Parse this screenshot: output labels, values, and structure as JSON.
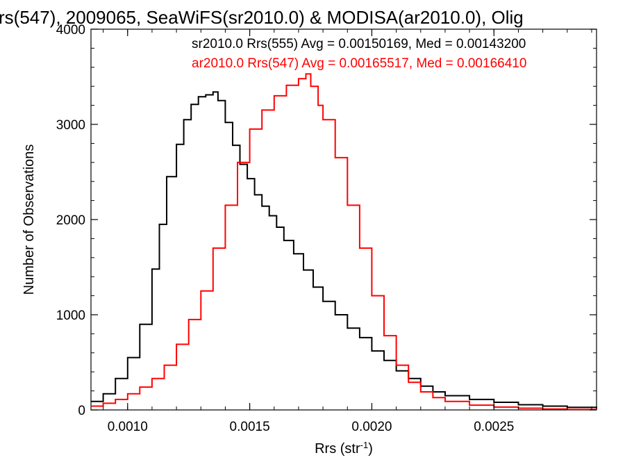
{
  "chart_data": {
    "type": "line",
    "title": "rs(547), 2009065, SeaWiFS(sr2010.0) & MODISA(ar2010.0), Olig",
    "xlabel": "Rrs (str",
    "xlabel_sup": "-1",
    "xlabel_close": ")",
    "ylabel": "Number of Observations",
    "xlim": [
      0.00085,
      0.00292
    ],
    "ylim": [
      0,
      4000
    ],
    "x_ticks": [
      0.001,
      0.0015,
      0.002,
      0.0025
    ],
    "x_tick_labels": [
      "0.0010",
      "0.0015",
      "0.0020",
      "0.0025"
    ],
    "y_ticks": [
      0,
      1000,
      2000,
      3000,
      4000
    ],
    "y_tick_labels": [
      "0",
      "1000",
      "2000",
      "3000",
      "4000"
    ],
    "legend_position": "top-right",
    "colors": {
      "sr2010": "#000000",
      "ar2010": "#ff0000"
    },
    "series": [
      {
        "label": "sr2010.0 Rrs(555) Avg = 0.00150169, Med = 0.00143200",
        "color": "#000000",
        "x": [
          0.00085,
          0.0009,
          0.00095,
          0.001,
          0.00105,
          0.0011,
          0.00113,
          0.00116,
          0.0012,
          0.00123,
          0.00126,
          0.00129,
          0.00132,
          0.00135,
          0.00137,
          0.0014,
          0.00143,
          0.00146,
          0.00149,
          0.00152,
          0.00155,
          0.00158,
          0.00161,
          0.00164,
          0.00168,
          0.00172,
          0.00176,
          0.0018,
          0.00185,
          0.0019,
          0.00195,
          0.002,
          0.00205,
          0.0021,
          0.00215,
          0.0022,
          0.00225,
          0.0023,
          0.0024,
          0.0025,
          0.0026,
          0.0027,
          0.0028,
          0.00292
        ],
        "y": [
          90,
          170,
          330,
          550,
          900,
          1480,
          1950,
          2450,
          2790,
          3050,
          3210,
          3290,
          3310,
          3340,
          3250,
          3020,
          2780,
          2580,
          2430,
          2260,
          2140,
          2040,
          1920,
          1780,
          1640,
          1470,
          1290,
          1140,
          1000,
          860,
          760,
          620,
          520,
          410,
          330,
          250,
          190,
          150,
          110,
          80,
          55,
          40,
          28,
          15
        ]
      },
      {
        "label": "ar2010.0 Rrs(547) Avg = 0.00165517, Med = 0.00166410",
        "color": "#ff0000",
        "x": [
          0.00085,
          0.0009,
          0.00095,
          0.001,
          0.00105,
          0.0011,
          0.00115,
          0.0012,
          0.00125,
          0.0013,
          0.00135,
          0.0014,
          0.00145,
          0.0015,
          0.00155,
          0.0016,
          0.00165,
          0.0017,
          0.00173,
          0.00175,
          0.00178,
          0.0018,
          0.00185,
          0.0019,
          0.00195,
          0.002,
          0.00205,
          0.0021,
          0.00215,
          0.0022,
          0.00225,
          0.0023,
          0.0024,
          0.0025,
          0.0026,
          0.0027,
          0.0028,
          0.00292
        ],
        "y": [
          40,
          70,
          110,
          170,
          240,
          330,
          470,
          690,
          950,
          1250,
          1700,
          2150,
          2600,
          2950,
          3150,
          3300,
          3410,
          3480,
          3530,
          3400,
          3200,
          3050,
          2650,
          2150,
          1700,
          1200,
          780,
          470,
          290,
          190,
          130,
          90,
          50,
          30,
          18,
          10,
          6,
          3
        ]
      }
    ]
  }
}
